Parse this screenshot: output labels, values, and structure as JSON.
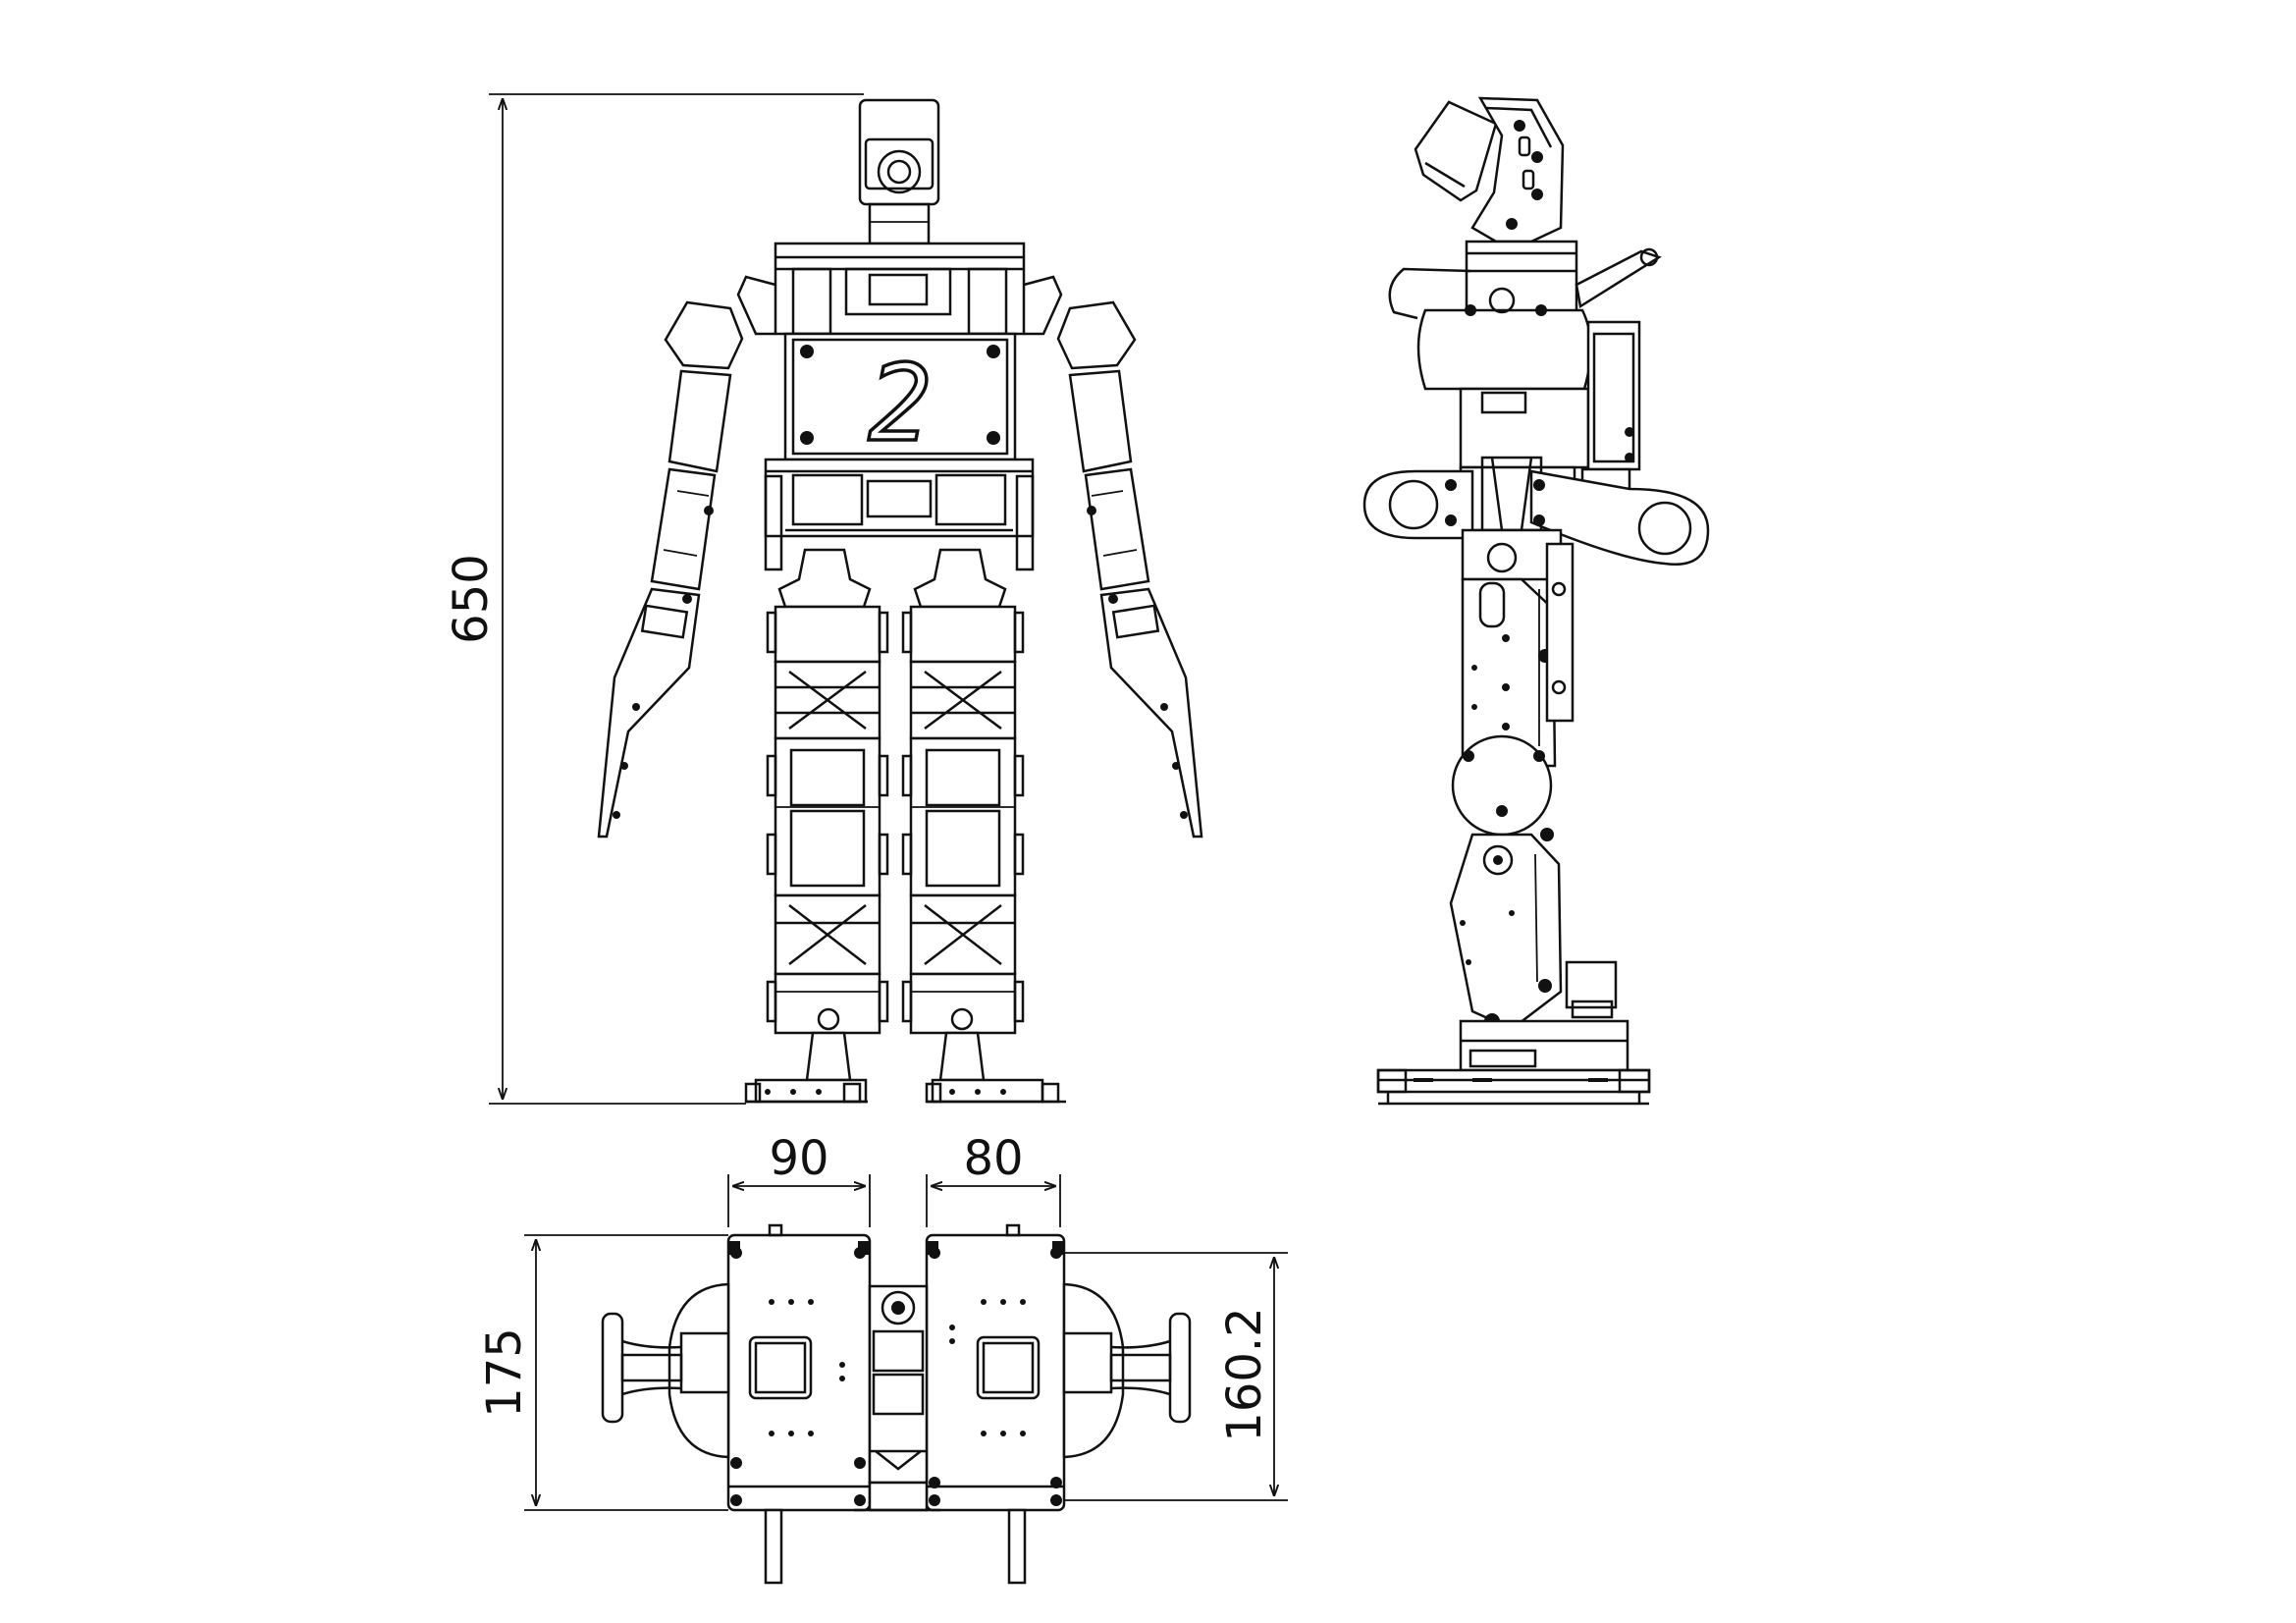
{
  "dimensions": {
    "height": "650",
    "left_foot_width": "90",
    "right_foot_width": "80",
    "foot_length_left": "175",
    "foot_length_right": "160.2"
  },
  "chest_number": "2"
}
